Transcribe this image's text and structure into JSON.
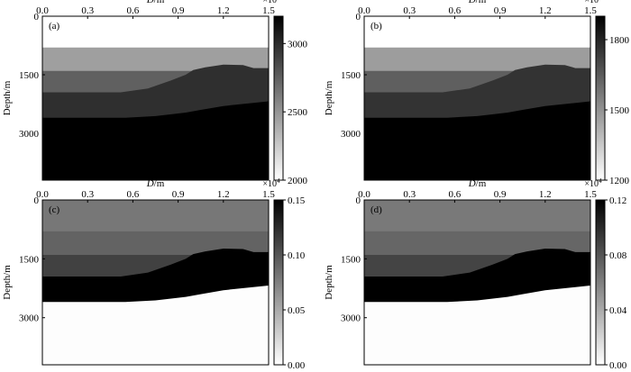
{
  "figure": {
    "panels_layout": "2x2",
    "colorbar_position": "right"
  },
  "chart_data": [
    {
      "type": "heatmap",
      "panel_label": "(a)",
      "xlabel_var": "D",
      "xlabel_unit": "/m",
      "x_multiplier": "×10",
      "x_multiplier_exp": "4",
      "x_ticks": [
        "0.0",
        "0.3",
        "0.6",
        "0.9",
        "1.2",
        "1.5"
      ],
      "xlim": [
        0,
        1.5
      ],
      "ylabel": "Depth/m",
      "y_ticks": [
        "0",
        "1500",
        "3000"
      ],
      "ylim": [
        0,
        4200
      ],
      "colorbar_ticks": [
        "2000",
        "2500",
        "3000"
      ],
      "colorbar_range": [
        2000,
        3200
      ],
      "layers": [
        {
          "top": [
            [
              0,
              0
            ],
            [
              1.5,
              0
            ]
          ],
          "value": 2000
        },
        {
          "top": [
            [
              0,
              800
            ],
            [
              1.5,
              800
            ]
          ],
          "value": 2450
        },
        {
          "top": [
            [
              0,
              1400
            ],
            [
              1.5,
              1400
            ]
          ],
          "value": 2750
        },
        {
          "top": [
            [
              0,
              1950
            ],
            [
              0.52,
              1950
            ],
            [
              0.7,
              1850
            ],
            [
              0.85,
              1650
            ],
            [
              0.95,
              1500
            ],
            [
              1.0,
              1380
            ],
            [
              1.08,
              1310
            ],
            [
              1.2,
              1240
            ],
            [
              1.33,
              1250
            ],
            [
              1.4,
              1330
            ],
            [
              1.5,
              1330
            ]
          ],
          "value": 2980
        },
        {
          "top": [
            [
              0,
              2600
            ],
            [
              0.55,
              2600
            ],
            [
              0.75,
              2560
            ],
            [
              0.95,
              2470
            ],
            [
              1.05,
              2400
            ],
            [
              1.2,
              2300
            ],
            [
              1.5,
              2180
            ]
          ],
          "value": 3200
        }
      ]
    },
    {
      "type": "heatmap",
      "panel_label": "(b)",
      "xlabel_var": "D",
      "xlabel_unit": "/m",
      "x_multiplier": "×10",
      "x_multiplier_exp": "4",
      "x_ticks": [
        "0.0",
        "0.3",
        "0.6",
        "0.9",
        "1.2",
        "1.5"
      ],
      "xlim": [
        0,
        1.5
      ],
      "ylabel": "Depth/m",
      "y_ticks": [
        "0",
        "1500",
        "3000"
      ],
      "ylim": [
        0,
        4200
      ],
      "colorbar_ticks": [
        "1200",
        "1500",
        "1800"
      ],
      "colorbar_range": [
        1200,
        1900
      ],
      "layers": [
        {
          "top": [
            [
              0,
              0
            ],
            [
              1.5,
              0
            ]
          ],
          "value": 1200
        },
        {
          "top": [
            [
              0,
              800
            ],
            [
              1.5,
              800
            ]
          ],
          "value": 1470
        },
        {
          "top": [
            [
              0,
              1400
            ],
            [
              1.5,
              1400
            ]
          ],
          "value": 1640
        },
        {
          "top": [
            [
              0,
              1950
            ],
            [
              0.52,
              1950
            ],
            [
              0.7,
              1850
            ],
            [
              0.85,
              1650
            ],
            [
              0.95,
              1500
            ],
            [
              1.0,
              1380
            ],
            [
              1.08,
              1310
            ],
            [
              1.2,
              1240
            ],
            [
              1.33,
              1250
            ],
            [
              1.4,
              1330
            ],
            [
              1.5,
              1330
            ]
          ],
          "value": 1760
        },
        {
          "top": [
            [
              0,
              2600
            ],
            [
              0.55,
              2600
            ],
            [
              0.75,
              2560
            ],
            [
              0.95,
              2470
            ],
            [
              1.05,
              2400
            ],
            [
              1.2,
              2300
            ],
            [
              1.5,
              2180
            ]
          ],
          "value": 1900
        }
      ]
    },
    {
      "type": "heatmap",
      "panel_label": "(c)",
      "xlabel_var": "D",
      "xlabel_unit": "/m",
      "x_multiplier": "×10",
      "x_multiplier_exp": "4",
      "x_ticks": [
        "0.0",
        "0.3",
        "0.6",
        "0.9",
        "1.2",
        "1.5"
      ],
      "xlim": [
        0,
        1.5
      ],
      "ylabel": "Depth/m",
      "y_ticks": [
        "0",
        "1500",
        "3000"
      ],
      "ylim": [
        0,
        4200
      ],
      "colorbar_ticks": [
        "0.00",
        "0.05",
        "0.10",
        "0.15"
      ],
      "colorbar_range": [
        0,
        0.15
      ],
      "layers": [
        {
          "top": [
            [
              0,
              0
            ],
            [
              1.5,
              0
            ]
          ],
          "value": 0.08
        },
        {
          "top": [
            [
              0,
              800
            ],
            [
              1.5,
              800
            ]
          ],
          "value": 0.092
        },
        {
          "top": [
            [
              0,
              1400
            ],
            [
              1.5,
              1400
            ]
          ],
          "value": 0.112
        },
        {
          "top": [
            [
              0,
              1950
            ],
            [
              0.52,
              1950
            ],
            [
              0.7,
              1850
            ],
            [
              0.85,
              1650
            ],
            [
              0.95,
              1500
            ],
            [
              1.0,
              1380
            ],
            [
              1.08,
              1310
            ],
            [
              1.2,
              1240
            ],
            [
              1.33,
              1250
            ],
            [
              1.4,
              1330
            ],
            [
              1.5,
              1330
            ]
          ],
          "value": 0.15
        },
        {
          "top": [
            [
              0,
              2600
            ],
            [
              0.55,
              2600
            ],
            [
              0.75,
              2560
            ],
            [
              0.95,
              2470
            ],
            [
              1.05,
              2400
            ],
            [
              1.2,
              2300
            ],
            [
              1.5,
              2180
            ]
          ],
          "value": 0.001
        }
      ]
    },
    {
      "type": "heatmap",
      "panel_label": "(d)",
      "xlabel_var": "D",
      "xlabel_unit": "/m",
      "x_multiplier": "×10",
      "x_multiplier_exp": "4",
      "x_ticks": [
        "0.0",
        "0.3",
        "0.6",
        "0.9",
        "1.2",
        "1.5"
      ],
      "xlim": [
        0,
        1.5
      ],
      "ylabel": "Depth/m",
      "y_ticks": [
        "0",
        "1500",
        "3000"
      ],
      "ylim": [
        0,
        4200
      ],
      "colorbar_ticks": [
        "0.00",
        "0.04",
        "0.08",
        "0.12"
      ],
      "colorbar_range": [
        0,
        0.12
      ],
      "layers": [
        {
          "top": [
            [
              0,
              0
            ],
            [
              1.5,
              0
            ]
          ],
          "value": 0.063
        },
        {
          "top": [
            [
              0,
              800
            ],
            [
              1.5,
              800
            ]
          ],
          "value": 0.072
        },
        {
          "top": [
            [
              0,
              1400
            ],
            [
              1.5,
              1400
            ]
          ],
          "value": 0.088
        },
        {
          "top": [
            [
              0,
              1950
            ],
            [
              0.52,
              1950
            ],
            [
              0.7,
              1850
            ],
            [
              0.85,
              1650
            ],
            [
              0.95,
              1500
            ],
            [
              1.0,
              1380
            ],
            [
              1.08,
              1310
            ],
            [
              1.2,
              1240
            ],
            [
              1.33,
              1250
            ],
            [
              1.4,
              1330
            ],
            [
              1.5,
              1330
            ]
          ],
          "value": 0.12
        },
        {
          "top": [
            [
              0,
              2600
            ],
            [
              0.55,
              2600
            ],
            [
              0.75,
              2560
            ],
            [
              0.95,
              2470
            ],
            [
              1.05,
              2400
            ],
            [
              1.2,
              2300
            ],
            [
              1.5,
              2180
            ]
          ],
          "value": 0.001
        }
      ]
    }
  ]
}
